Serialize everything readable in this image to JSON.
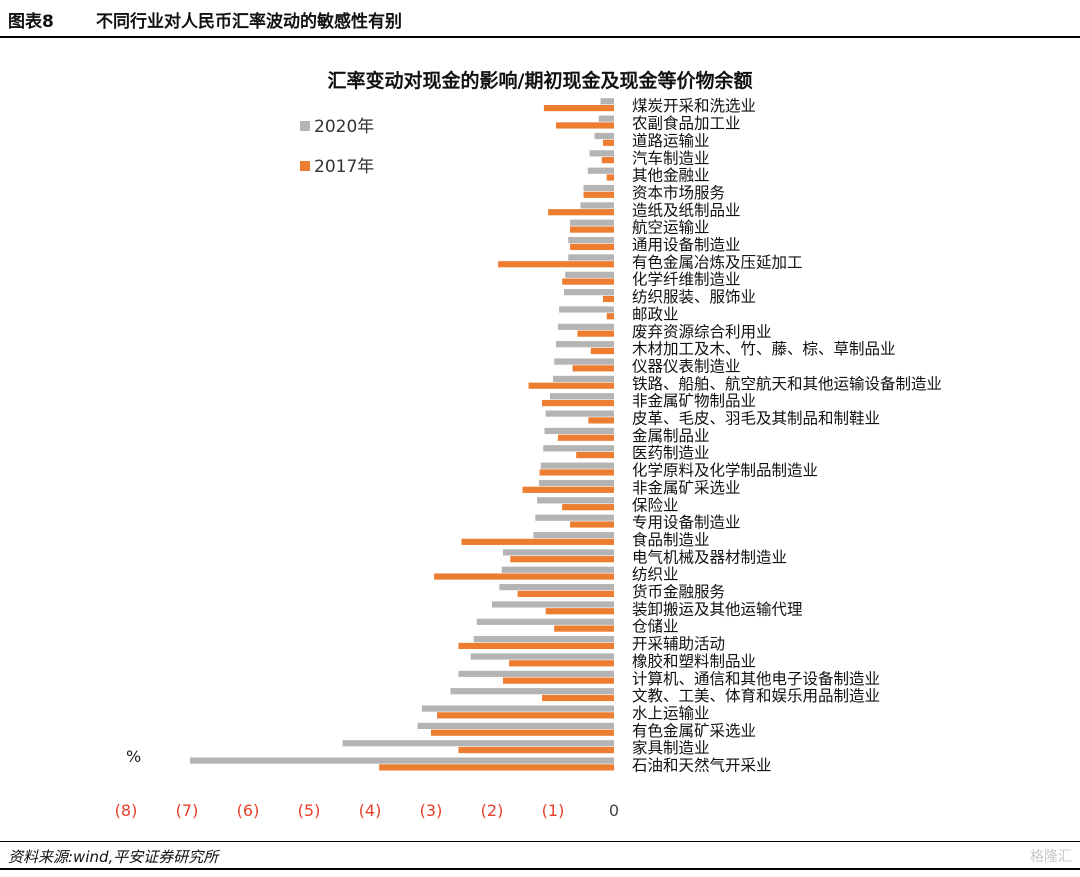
{
  "header": {
    "figure_label": "图表8",
    "figure_title": "不同行业对人民币汇率波动的敏感性有别"
  },
  "footer": {
    "source": "资料来源:wind,平安证券研究所",
    "watermark": "格隆汇"
  },
  "colors": {
    "series_2020": "#b4b4b4",
    "series_2017": "#ed7d31",
    "negative_tick": "#e8402b",
    "zero_tick": "#444444"
  },
  "chart_data": {
    "type": "bar",
    "orientation": "horizontal",
    "title": "汇率变动对现金的影响/期初现金及现金等价物余额",
    "unit_label": "%",
    "xlim": [
      -8,
      0
    ],
    "x_ticks": [
      "(8)",
      "(7)",
      "(6)",
      "(5)",
      "(4)",
      "(3)",
      "(2)",
      "(1)",
      "0"
    ],
    "x_tick_values": [
      -8,
      -7,
      -6,
      -5,
      -4,
      -3,
      -2,
      -1,
      0
    ],
    "legend_position": "top-left",
    "grid": false,
    "categories": [
      "煤炭开采和洗选业",
      "农副食品加工业",
      "道路运输业",
      "汽车制造业",
      "其他金融业",
      "资本市场服务",
      "造纸及纸制品业",
      "航空运输业",
      "通用设备制造业",
      "有色金属冶炼及压延加工",
      "化学纤维制造业",
      "纺织服装、服饰业",
      "邮政业",
      "废弃资源综合利用业",
      "木材加工及木、竹、藤、棕、草制品业",
      "仪器仪表制造业",
      "铁路、船舶、航空航天和其他运输设备制造业",
      "非金属矿物制品业",
      "皮革、毛皮、羽毛及其制品和制鞋业",
      "金属制品业",
      "医药制造业",
      "化学原料及化学制品制造业",
      "非金属矿采选业",
      "保险业",
      "专用设备制造业",
      "食品制造业",
      "电气机械及器材制造业",
      "纺织业",
      "货币金融服务",
      "装卸搬运及其他运输代理",
      "仓储业",
      "开采辅助活动",
      "橡胶和塑料制品业",
      "计算机、通信和其他电子设备制造业",
      "文教、工美、体育和娱乐用品制造业",
      "水上运输业",
      "有色金属矿采选业",
      "家具制造业",
      "石油和天然气开采业"
    ],
    "series": [
      {
        "name": "2020年",
        "values": [
          -0.22,
          -0.25,
          -0.32,
          -0.4,
          -0.43,
          -0.5,
          -0.55,
          -0.72,
          -0.75,
          -0.75,
          -0.8,
          -0.82,
          -0.9,
          -0.92,
          -0.95,
          -0.98,
          -1.0,
          -1.05,
          -1.12,
          -1.14,
          -1.16,
          -1.2,
          -1.23,
          -1.26,
          -1.29,
          -1.32,
          -1.82,
          -1.84,
          -1.88,
          -2.0,
          -2.25,
          -2.3,
          -2.35,
          -2.55,
          -2.68,
          -3.15,
          -3.22,
          -4.45,
          -6.95
        ]
      },
      {
        "name": "2017年",
        "values": [
          -1.15,
          -0.95,
          -0.18,
          -0.2,
          -0.12,
          -0.5,
          -1.08,
          -0.72,
          -0.72,
          -1.9,
          -0.85,
          -0.18,
          -0.12,
          -0.6,
          -0.38,
          -0.68,
          -1.4,
          -1.18,
          -0.42,
          -0.92,
          -0.62,
          -1.22,
          -1.5,
          -0.85,
          -0.72,
          -2.5,
          -1.7,
          -2.95,
          -1.58,
          -1.12,
          -0.98,
          -2.55,
          -1.72,
          -1.82,
          -1.18,
          -2.9,
          -3.0,
          -2.55,
          -3.85
        ]
      }
    ]
  }
}
